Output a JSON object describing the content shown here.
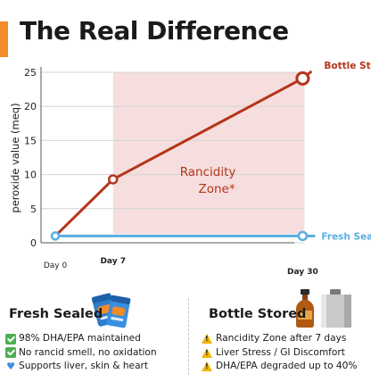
{
  "title": "The Real Difference",
  "colors": {
    "accent": "#f28c28",
    "bottle": "#b5351a",
    "fresh": "#5aaee0",
    "zone": "#f6dede",
    "grid": "#d4d4d4"
  },
  "chart_data": {
    "type": "line",
    "ylabel": "peroxide value (meq)",
    "ylim": [
      0,
      25
    ],
    "yticks": [
      0,
      5,
      10,
      15,
      20,
      25
    ],
    "x": [
      0,
      7,
      30
    ],
    "xticks": [
      {
        "value": 0,
        "label": "Day 0"
      },
      {
        "value": 7,
        "label": "Day 7"
      },
      {
        "value": 30,
        "label": "Day 30"
      }
    ],
    "grid": true,
    "series": [
      {
        "name": "Bottle Stored",
        "values": [
          1,
          9.3,
          24.1
        ]
      },
      {
        "name": "Fresh Sealed",
        "values": [
          1,
          1,
          1
        ]
      }
    ],
    "zone": {
      "from": 7,
      "label_line1": "Rancidity",
      "label_line2": "Zone*"
    }
  },
  "fresh": {
    "title": "Fresh Sealed",
    "icon": "fish-oil-pouch-icon",
    "items": [
      {
        "icon": "check-icon",
        "text": "98% DHA/EPA maintained"
      },
      {
        "icon": "check-icon",
        "text": "No rancid smell, no oxidation"
      },
      {
        "icon": "heart-icon",
        "text": "Supports liver, skin & heart"
      }
    ]
  },
  "bottle": {
    "title": "Bottle Stored",
    "icon": "oil-bottle-icon",
    "items": [
      {
        "icon": "warning-icon",
        "text": "Rancidity Zone after 7 days"
      },
      {
        "icon": "warning-icon",
        "text": "Liver Stress / GI Discomfort"
      },
      {
        "icon": "warning-icon",
        "text": "DHA/EPA degraded up to 40%"
      }
    ]
  }
}
